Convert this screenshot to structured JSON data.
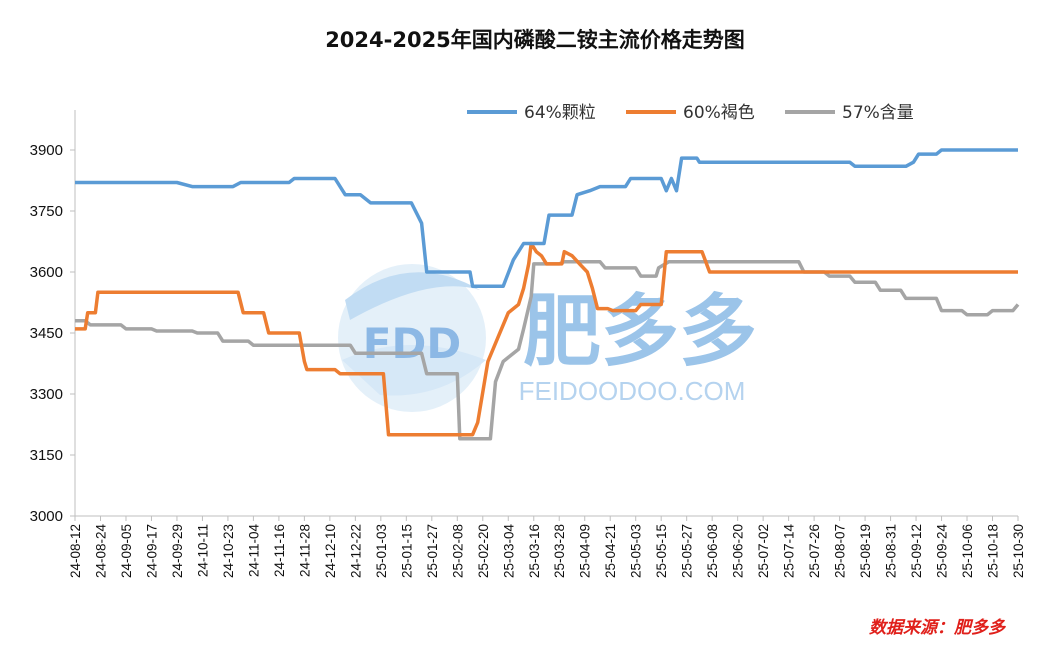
{
  "chart_data": {
    "type": "line",
    "title": "2024-2025年国内磷酸二铵主流价格走势图",
    "ylim": [
      3000,
      3900
    ],
    "yticks": [
      3000,
      3150,
      3300,
      3450,
      3600,
      3750,
      3900
    ],
    "x_tick_labels": [
      "24-08-12",
      "24-08-24",
      "24-09-05",
      "24-09-17",
      "24-09-29",
      "24-10-11",
      "24-10-23",
      "24-11-04",
      "24-11-16",
      "24-11-28",
      "24-12-10",
      "24-12-22",
      "25-01-03",
      "25-01-15",
      "25-01-27",
      "25-02-08",
      "25-02-20",
      "25-03-04",
      "25-03-16",
      "25-03-28",
      "25-04-09",
      "25-04-21",
      "25-05-03",
      "25-05-15",
      "25-05-27",
      "25-06-08",
      "25-06-20",
      "25-07-02",
      "25-07-14",
      "25-07-26",
      "25-08-07",
      "25-08-19",
      "25-08-31",
      "25-09-12",
      "25-09-24",
      "25-10-06",
      "25-10-18",
      "25-10-30"
    ],
    "legend_position": "top-right",
    "grid": false,
    "series": [
      {
        "name": "64%颗粒",
        "color": "#5b9bd5",
        "points": [
          [
            0,
            3820
          ],
          [
            4,
            3820
          ],
          [
            4.6,
            3810
          ],
          [
            6.2,
            3810
          ],
          [
            6.5,
            3820
          ],
          [
            8.4,
            3820
          ],
          [
            8.6,
            3830
          ],
          [
            10.2,
            3830
          ],
          [
            10.6,
            3790
          ],
          [
            11.2,
            3790
          ],
          [
            11.6,
            3770
          ],
          [
            13.2,
            3770
          ],
          [
            13.6,
            3720
          ],
          [
            13.8,
            3600
          ],
          [
            15.5,
            3600
          ],
          [
            15.6,
            3565
          ],
          [
            16.8,
            3565
          ],
          [
            17.2,
            3630
          ],
          [
            17.6,
            3670
          ],
          [
            18.4,
            3670
          ],
          [
            18.6,
            3740
          ],
          [
            19.5,
            3740
          ],
          [
            19.7,
            3790
          ],
          [
            20.2,
            3800
          ],
          [
            20.6,
            3810
          ],
          [
            21.6,
            3810
          ],
          [
            21.8,
            3830
          ],
          [
            23,
            3830
          ],
          [
            23.2,
            3800
          ],
          [
            23.4,
            3830
          ],
          [
            23.6,
            3800
          ],
          [
            23.8,
            3880
          ],
          [
            24.4,
            3880
          ],
          [
            24.5,
            3870
          ],
          [
            30.4,
            3870
          ],
          [
            30.6,
            3860
          ],
          [
            32.6,
            3860
          ],
          [
            32.9,
            3870
          ],
          [
            33.1,
            3890
          ],
          [
            33.8,
            3890
          ],
          [
            34,
            3900
          ],
          [
            37,
            3900
          ]
        ]
      },
      {
        "name": "60%褐色",
        "color": "#ed7d31",
        "points": [
          [
            0,
            3460
          ],
          [
            0.4,
            3460
          ],
          [
            0.5,
            3500
          ],
          [
            0.8,
            3500
          ],
          [
            0.9,
            3550
          ],
          [
            6.4,
            3550
          ],
          [
            6.6,
            3500
          ],
          [
            7.4,
            3500
          ],
          [
            7.6,
            3450
          ],
          [
            8.8,
            3450
          ],
          [
            9.0,
            3380
          ],
          [
            9.1,
            3360
          ],
          [
            10.2,
            3360
          ],
          [
            10.4,
            3350
          ],
          [
            12.1,
            3350
          ],
          [
            12.3,
            3200
          ],
          [
            15.6,
            3200
          ],
          [
            15.8,
            3230
          ],
          [
            16.2,
            3380
          ],
          [
            16.6,
            3440
          ],
          [
            17,
            3500
          ],
          [
            17.4,
            3520
          ],
          [
            17.6,
            3560
          ],
          [
            17.8,
            3620
          ],
          [
            17.9,
            3670
          ],
          [
            18.1,
            3650
          ],
          [
            18.3,
            3640
          ],
          [
            18.5,
            3620
          ],
          [
            19.1,
            3620
          ],
          [
            19.2,
            3650
          ],
          [
            19.5,
            3640
          ],
          [
            19.8,
            3620
          ],
          [
            20.1,
            3600
          ],
          [
            20.3,
            3560
          ],
          [
            20.5,
            3510
          ],
          [
            20.9,
            3510
          ],
          [
            21.1,
            3505
          ],
          [
            22,
            3505
          ],
          [
            22.2,
            3520
          ],
          [
            23,
            3520
          ],
          [
            23.2,
            3650
          ],
          [
            24.6,
            3650
          ],
          [
            24.9,
            3600
          ],
          [
            37,
            3600
          ]
        ]
      },
      {
        "name": "57%含量",
        "color": "#a5a5a5",
        "points": [
          [
            0,
            3480
          ],
          [
            0.4,
            3480
          ],
          [
            0.6,
            3470
          ],
          [
            1.8,
            3470
          ],
          [
            2,
            3460
          ],
          [
            3,
            3460
          ],
          [
            3.2,
            3455
          ],
          [
            4.6,
            3455
          ],
          [
            4.8,
            3450
          ],
          [
            5.6,
            3450
          ],
          [
            5.8,
            3430
          ],
          [
            6.8,
            3430
          ],
          [
            7,
            3420
          ],
          [
            10.8,
            3420
          ],
          [
            11,
            3400
          ],
          [
            13.6,
            3400
          ],
          [
            13.8,
            3350
          ],
          [
            15,
            3350
          ],
          [
            15.1,
            3190
          ],
          [
            16.3,
            3190
          ],
          [
            16.5,
            3330
          ],
          [
            16.8,
            3380
          ],
          [
            17,
            3390
          ],
          [
            17.4,
            3410
          ],
          [
            17.6,
            3460
          ],
          [
            17.9,
            3540
          ],
          [
            18,
            3620
          ],
          [
            19,
            3620
          ],
          [
            19.2,
            3625
          ],
          [
            20.6,
            3625
          ],
          [
            20.8,
            3610
          ],
          [
            22,
            3610
          ],
          [
            22.2,
            3590
          ],
          [
            22.8,
            3590
          ],
          [
            22.9,
            3610
          ],
          [
            23.3,
            3625
          ],
          [
            28.4,
            3625
          ],
          [
            28.6,
            3600
          ],
          [
            29.4,
            3600
          ],
          [
            29.6,
            3590
          ],
          [
            30.4,
            3590
          ],
          [
            30.6,
            3575
          ],
          [
            31.4,
            3575
          ],
          [
            31.6,
            3555
          ],
          [
            32.4,
            3555
          ],
          [
            32.6,
            3535
          ],
          [
            33.8,
            3535
          ],
          [
            34,
            3505
          ],
          [
            34.8,
            3505
          ],
          [
            35,
            3495
          ],
          [
            35.8,
            3495
          ],
          [
            36,
            3505
          ],
          [
            36.8,
            3505
          ],
          [
            37,
            3520
          ]
        ]
      }
    ],
    "source": "数据来源：肥多多"
  },
  "watermark": {
    "logo_text": "FDD",
    "brand": "肥多多",
    "url": "FEIDOODOO.COM"
  }
}
